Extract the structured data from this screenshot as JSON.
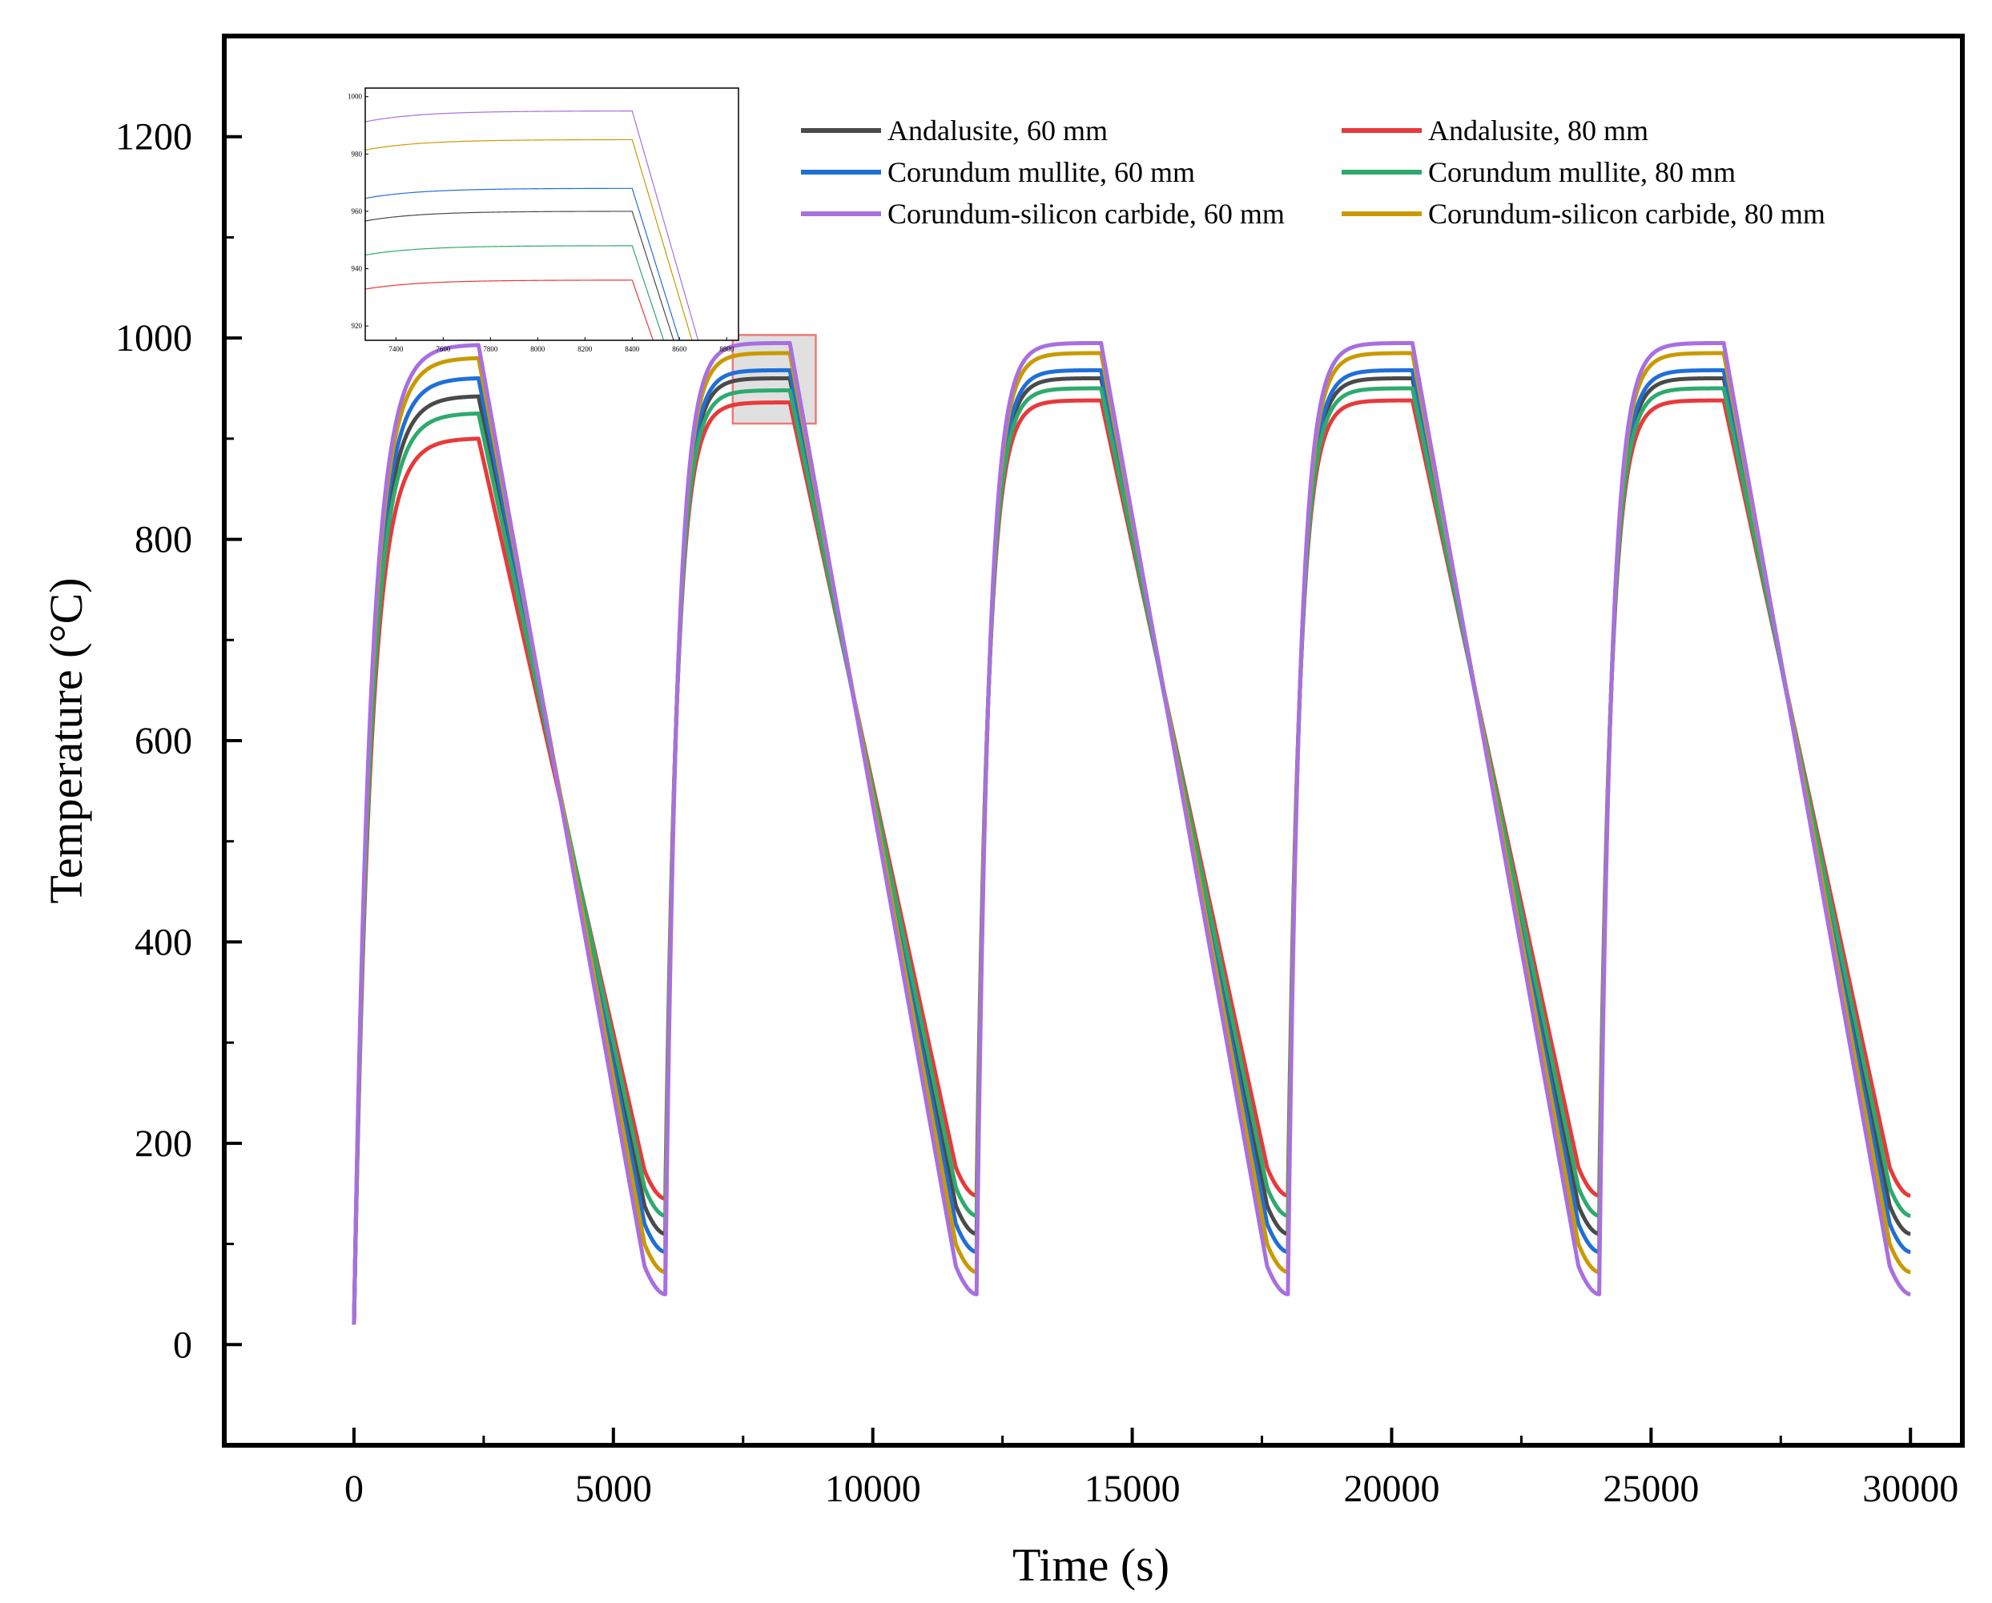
{
  "chart_data": {
    "type": "line",
    "title": "",
    "xlabel": "Time (s)",
    "ylabel": "Temperature (°C)",
    "xlim": [
      -2500,
      31000
    ],
    "ylim": [
      -100,
      1300
    ],
    "xticks": [
      0,
      5000,
      10000,
      15000,
      20000,
      25000,
      30000
    ],
    "xtick_labels": [
      "0",
      "5000",
      "10000",
      "15000",
      "20000",
      "25000",
      "30000"
    ],
    "yticks": [
      0,
      200,
      400,
      600,
      800,
      1000,
      1200
    ],
    "ytick_labels": [
      "0",
      "200",
      "400",
      "600",
      "800",
      "1000",
      "1200"
    ],
    "grid": false,
    "legend_position": "top-right",
    "series": [
      {
        "name": "Andalusite, 60 mm",
        "color": "#4a4a4a",
        "start": 20,
        "peaks": [
          942,
          960,
          960,
          960,
          960
        ],
        "troughs": [
          110,
          110,
          110,
          110,
          110
        ]
      },
      {
        "name": "Andalusite, 80 mm",
        "color": "#e8393a",
        "start": 20,
        "peaks": [
          900,
          936,
          938,
          938,
          938
        ],
        "troughs": [
          145,
          148,
          148,
          148,
          148
        ]
      },
      {
        "name": "Corundum mullite, 60 mm",
        "color": "#1f6fd8",
        "start": 20,
        "peaks": [
          960,
          968,
          968,
          968,
          968
        ],
        "troughs": [
          92,
          92,
          92,
          92,
          92
        ]
      },
      {
        "name": "Corundum mullite, 80 mm",
        "color": "#2eaa6e",
        "start": 20,
        "peaks": [
          925,
          948,
          950,
          950,
          950
        ],
        "troughs": [
          128,
          128,
          128,
          128,
          128
        ]
      },
      {
        "name": "Corundum-silicon carbide, 60 mm",
        "color": "#a86fe0",
        "start": 20,
        "peaks": [
          993,
          995,
          995,
          995,
          995
        ],
        "troughs": [
          50,
          50,
          50,
          50,
          50
        ]
      },
      {
        "name": "Corundum-silicon carbide, 80 mm",
        "color": "#c99a00",
        "start": 20,
        "peaks": [
          980,
          985,
          985,
          985,
          985
        ],
        "troughs": [
          72,
          72,
          72,
          72,
          72
        ]
      }
    ],
    "cycle_period": 6000,
    "heating_duration": 2400,
    "cycles": 5,
    "zoom_region": {
      "x": [
        7300,
        8900
      ],
      "y": [
        915,
        1003
      ]
    },
    "inset": {
      "xlim": [
        7270,
        8850
      ],
      "ylim": [
        915,
        1003
      ],
      "xticks": [
        7400,
        7600,
        7800,
        8000,
        8200,
        8400,
        8600,
        8800
      ],
      "xtick_labels": [
        "7400",
        "7600",
        "7800",
        "8000",
        "8200",
        "8400",
        "8600",
        "8800"
      ],
      "yticks": [
        920,
        940,
        960,
        980,
        1000
      ],
      "ytick_labels": [
        "920",
        "940",
        "960",
        "980",
        "1000"
      ]
    }
  }
}
